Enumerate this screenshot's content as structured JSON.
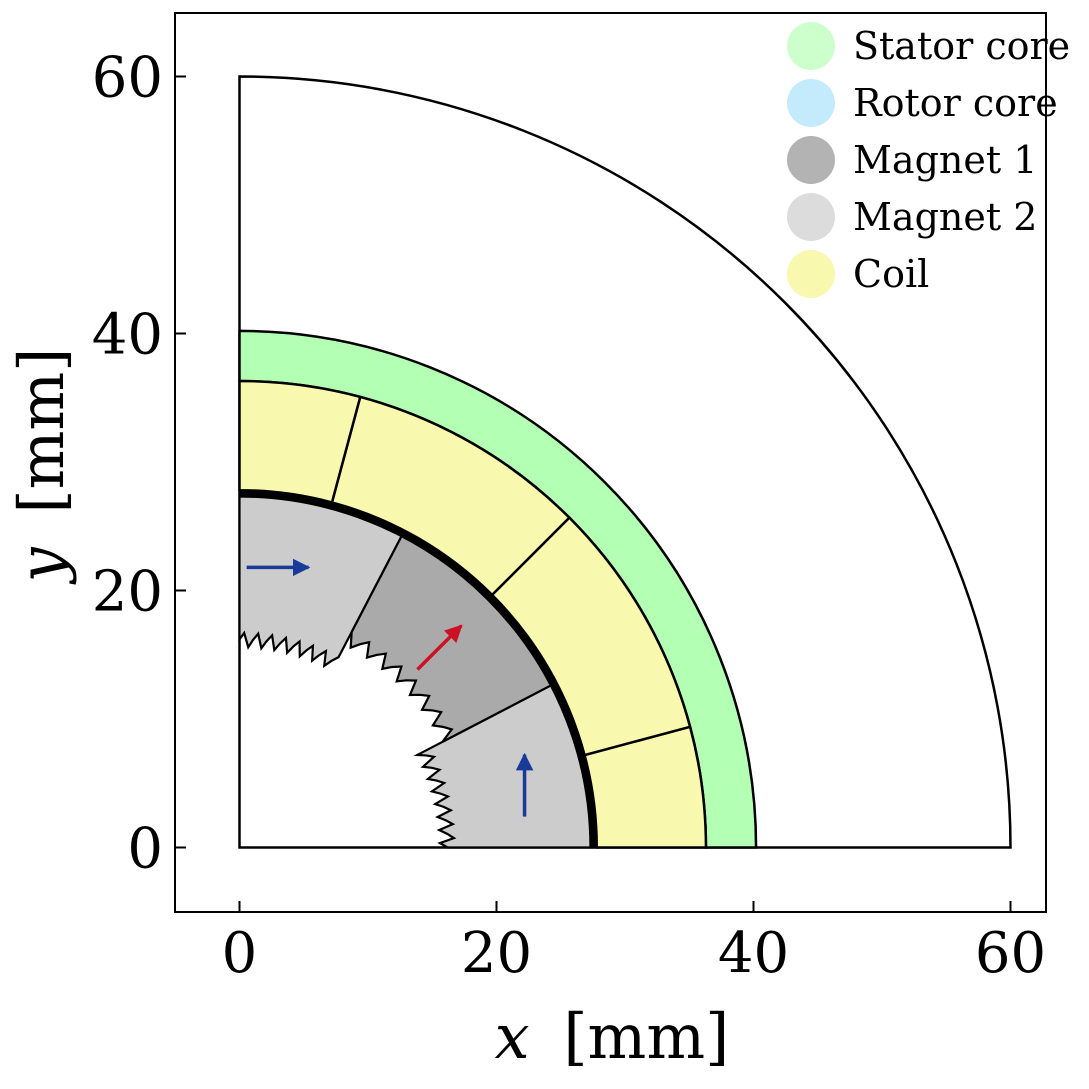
{
  "chart_data": {
    "type": "diagram",
    "xlabel": {
      "var": "x",
      "unit": "[mm]"
    },
    "ylabel": {
      "var": "y",
      "unit": "[mm]"
    },
    "xlim": [
      -5,
      63
    ],
    "ylim": [
      -5,
      65
    ],
    "xticks": [
      0,
      20,
      40,
      60
    ],
    "yticks": [
      0,
      20,
      40,
      60
    ],
    "legend": {
      "position": "top-right",
      "entries": [
        {
          "label": "Stator core",
          "color": "#ccffcc"
        },
        {
          "label": "Rotor core",
          "color": "#c4ebfb"
        },
        {
          "label": "Magnet 1",
          "color": "#b3b3b3"
        },
        {
          "label": "Magnet 2",
          "color": "#dcdcdc"
        },
        {
          "label": "Coil",
          "color": "#f8f8ae"
        }
      ]
    },
    "regions": {
      "outer_boundary_radius": 60,
      "stator_core": {
        "r_inner": 36.3,
        "r_outer": 40.2,
        "color": "#b3ffb3"
      },
      "coil": {
        "r_inner": 27.8,
        "r_outer": 36.3,
        "color": "#f8f8ae",
        "divider_angles_deg": [
          15,
          45,
          75
        ]
      },
      "airgap_ring": {
        "radius": 27.5
      },
      "magnet_1": {
        "angle_start_deg": 27.5,
        "angle_end_deg": 62.5,
        "color": "#aaaaaa",
        "magnetization_deg": 45,
        "arrow_color": "#cc1122"
      },
      "magnet_2": [
        {
          "angle_start_deg": 0,
          "angle_end_deg": 27.5,
          "color": "#cccccc",
          "magnetization_deg": 90,
          "arrow_color": "#1a3a99"
        },
        {
          "angle_start_deg": 62.5,
          "angle_end_deg": 90,
          "color": "#cccccc",
          "magnetization_deg": 0,
          "arrow_color": "#1a3a99"
        }
      ],
      "rotor_inner_radius_approx": 16
    }
  }
}
